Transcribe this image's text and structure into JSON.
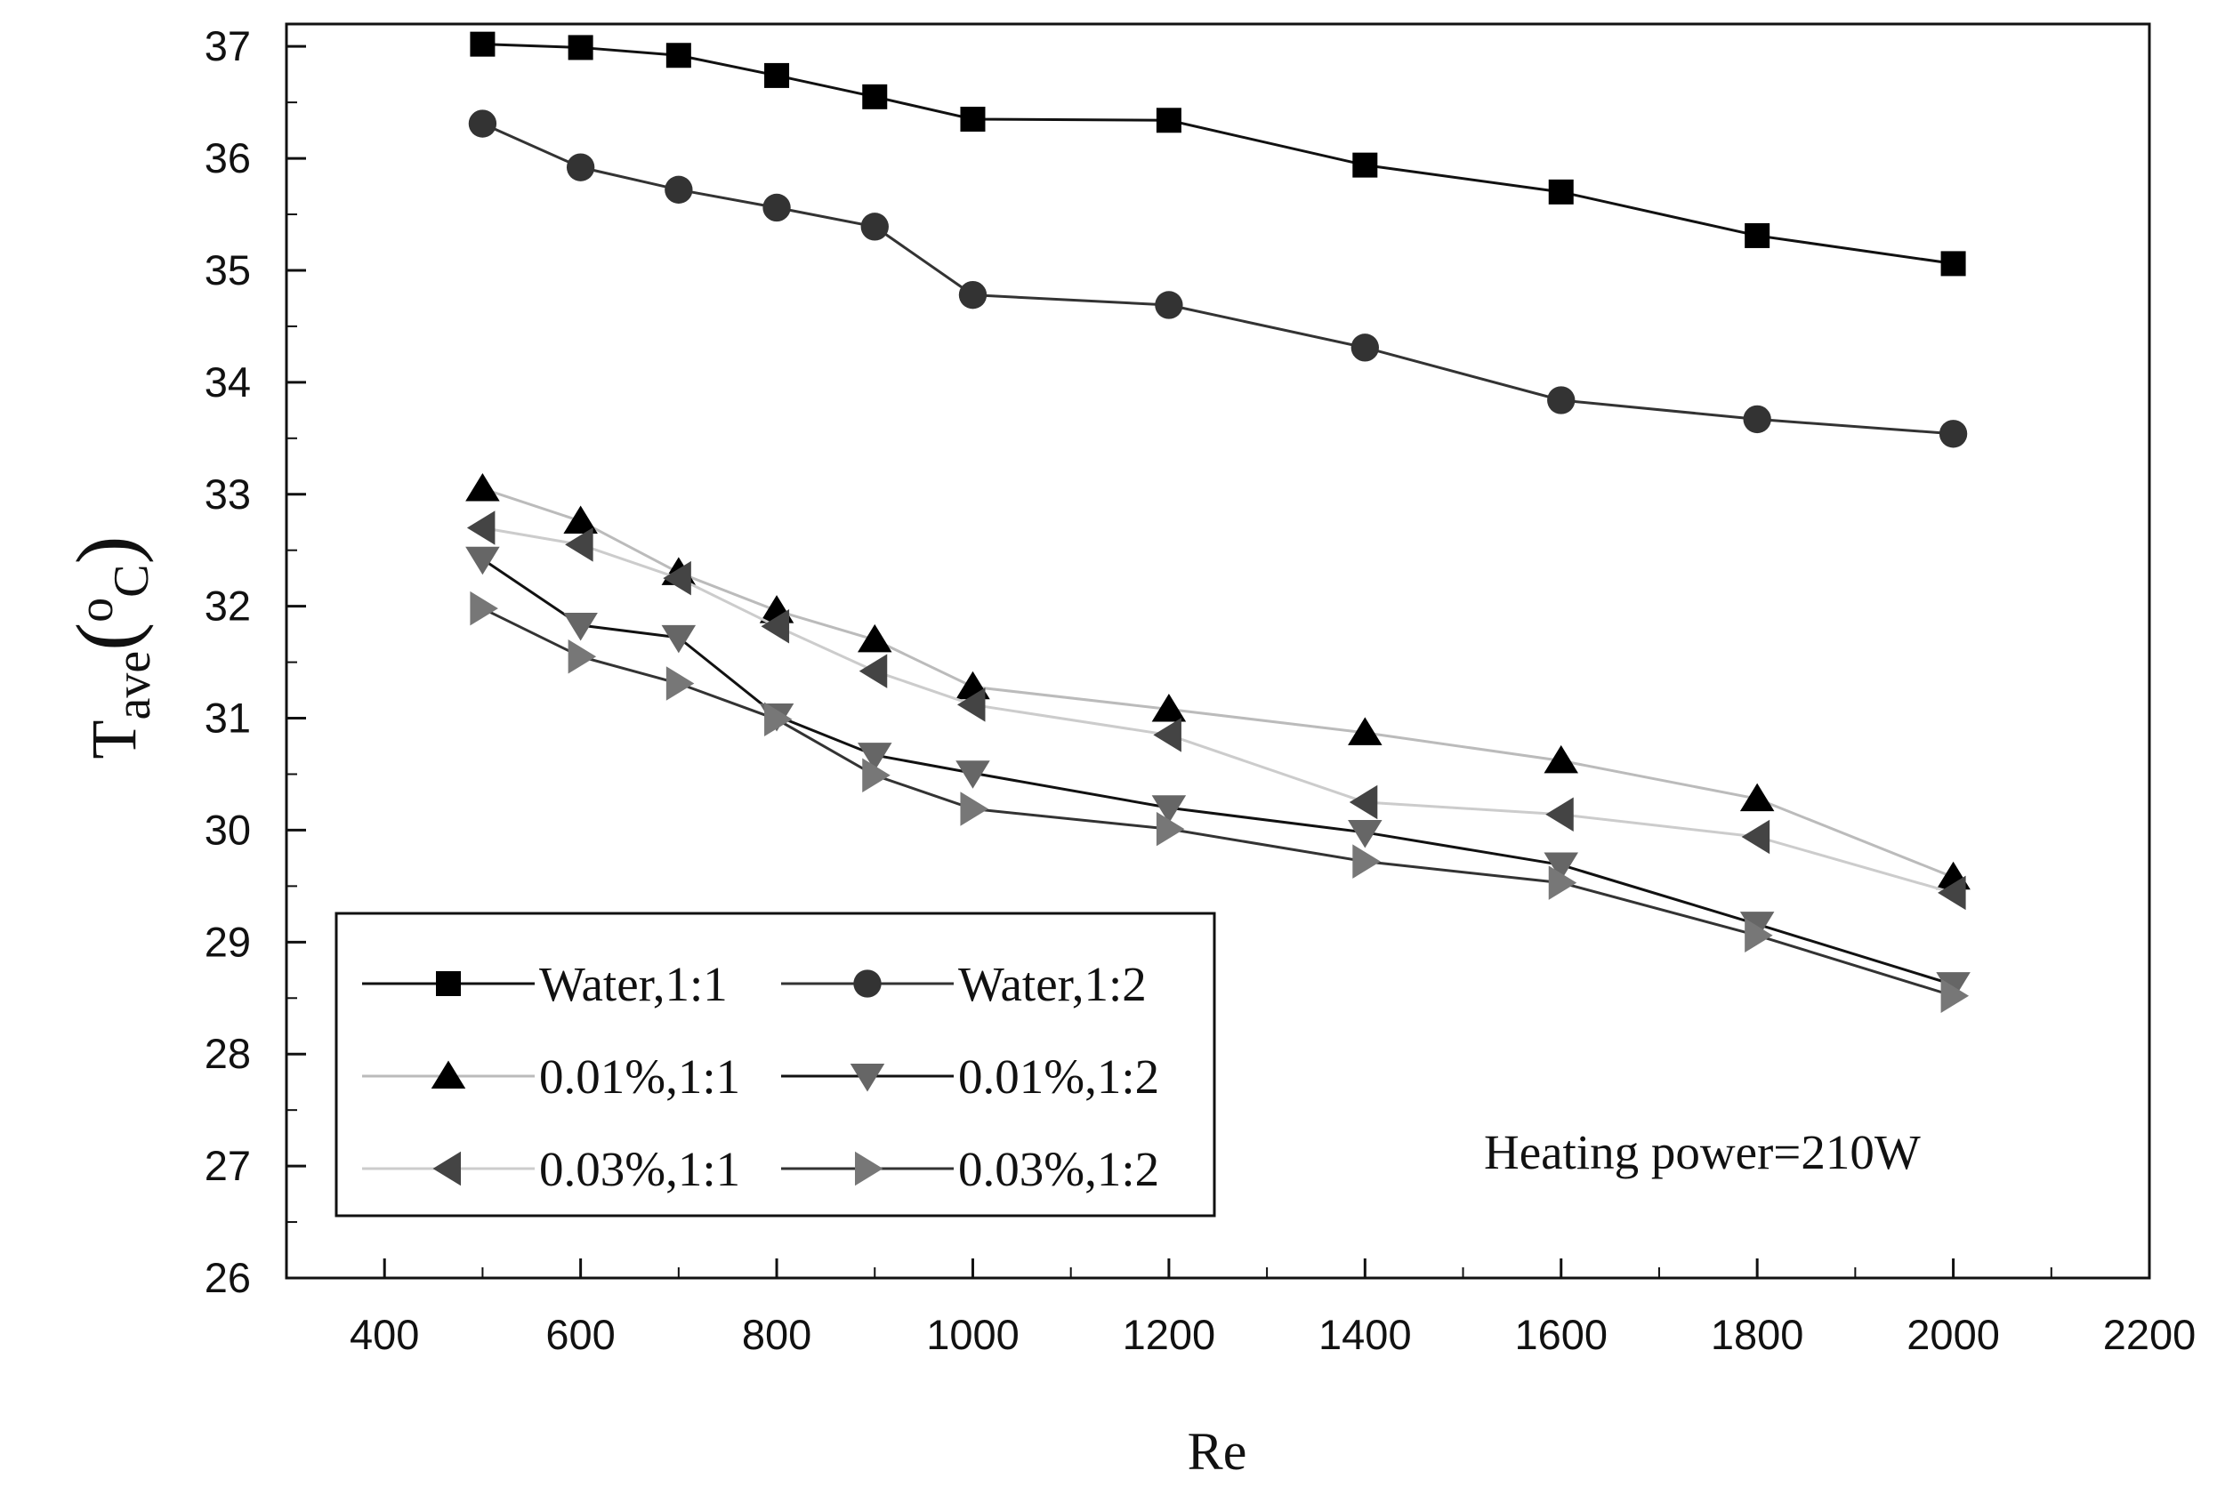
{
  "chart_data": {
    "type": "line",
    "title": "",
    "xlabel": "Re",
    "ylabel": {
      "main": "T",
      "subscript": "ave",
      "unit_sup": "o",
      "unit": "C"
    },
    "xlim": [
      300,
      2200
    ],
    "ylim": [
      26,
      37.2
    ],
    "xticks": [
      400,
      600,
      800,
      1000,
      1200,
      1400,
      1600,
      1800,
      2000,
      2200
    ],
    "yticks": [
      26,
      27,
      28,
      29,
      30,
      31,
      32,
      33,
      34,
      35,
      36,
      37
    ],
    "annotation": "Heating power=210W",
    "x": [
      500,
      600,
      700,
      800,
      900,
      1000,
      1200,
      1400,
      1600,
      1800,
      2000
    ],
    "series": [
      {
        "name": "Water,1:1",
        "marker": "square",
        "line_color": "#111111",
        "marker_color": "#000000",
        "values": [
          37.02,
          36.99,
          36.92,
          36.74,
          36.55,
          36.35,
          36.34,
          35.94,
          35.7,
          35.31,
          35.06
        ]
      },
      {
        "name": "Water,1:2",
        "marker": "circle",
        "line_color": "#333333",
        "marker_color": "#333333",
        "values": [
          36.31,
          35.92,
          35.72,
          35.56,
          35.39,
          34.78,
          34.69,
          34.31,
          33.84,
          33.67,
          33.54
        ]
      },
      {
        "name": "0.01%,1:1",
        "marker": "triangle-up",
        "line_color": "#bbbbbb",
        "marker_color": "#000000",
        "values": [
          33.05,
          32.76,
          32.3,
          31.96,
          31.7,
          31.28,
          31.08,
          30.87,
          30.62,
          30.28,
          29.58
        ]
      },
      {
        "name": "0.01%,1:2",
        "marker": "triangle-down",
        "line_color": "#111111",
        "marker_color": "#666666",
        "values": [
          32.42,
          31.83,
          31.72,
          31.02,
          30.67,
          30.51,
          30.2,
          29.98,
          29.69,
          29.16,
          28.62
        ]
      },
      {
        "name": "0.03%,1:1",
        "marker": "triangle-left",
        "line_color": "#cccccc",
        "marker_color": "#444444",
        "values": [
          32.7,
          32.55,
          32.25,
          31.82,
          31.42,
          31.12,
          30.85,
          30.25,
          30.14,
          29.94,
          29.44
        ]
      },
      {
        "name": "0.03%,1:2",
        "marker": "triangle-right",
        "line_color": "#333333",
        "marker_color": "#777777",
        "values": [
          31.98,
          31.55,
          31.31,
          30.99,
          30.49,
          30.19,
          30.01,
          29.72,
          29.53,
          29.06,
          28.52
        ]
      }
    ],
    "legend_position": "bottom-left"
  }
}
